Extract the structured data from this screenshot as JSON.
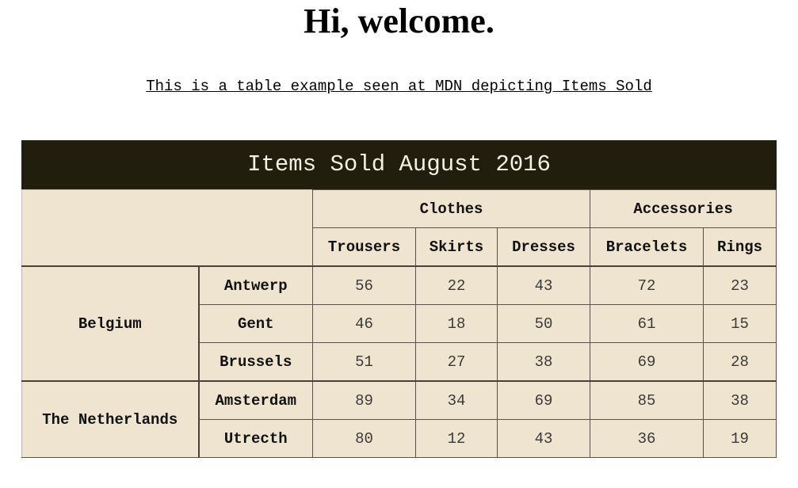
{
  "header": {
    "title": "Hi, welcome.",
    "subtitle": "This is a table example seen at MDN depicting Items Sold"
  },
  "table": {
    "caption": "Items Sold August 2016",
    "groups": [
      "Clothes",
      "Accessories"
    ],
    "columns": [
      "Trousers",
      "Skirts",
      "Dresses",
      "Bracelets",
      "Rings"
    ],
    "countries": [
      {
        "name": "Belgium",
        "cities": [
          {
            "name": "Antwerp",
            "values": [
              "56",
              "22",
              "43",
              "72",
              "23"
            ]
          },
          {
            "name": "Gent",
            "values": [
              "46",
              "18",
              "50",
              "61",
              "15"
            ]
          },
          {
            "name": "Brussels",
            "values": [
              "51",
              "27",
              "38",
              "69",
              "28"
            ]
          }
        ]
      },
      {
        "name": "The Netherlands",
        "cities": [
          {
            "name": "Amsterdam",
            "values": [
              "89",
              "34",
              "69",
              "85",
              "38"
            ]
          },
          {
            "name": "Utrecth",
            "values": [
              "80",
              "12",
              "43",
              "36",
              "19"
            ]
          }
        ]
      }
    ]
  },
  "colors": {
    "caption_bg": "#221e0e",
    "caption_text": "#f4f0e4",
    "table_bg": "#efe4cf",
    "border": "#5a5246"
  }
}
